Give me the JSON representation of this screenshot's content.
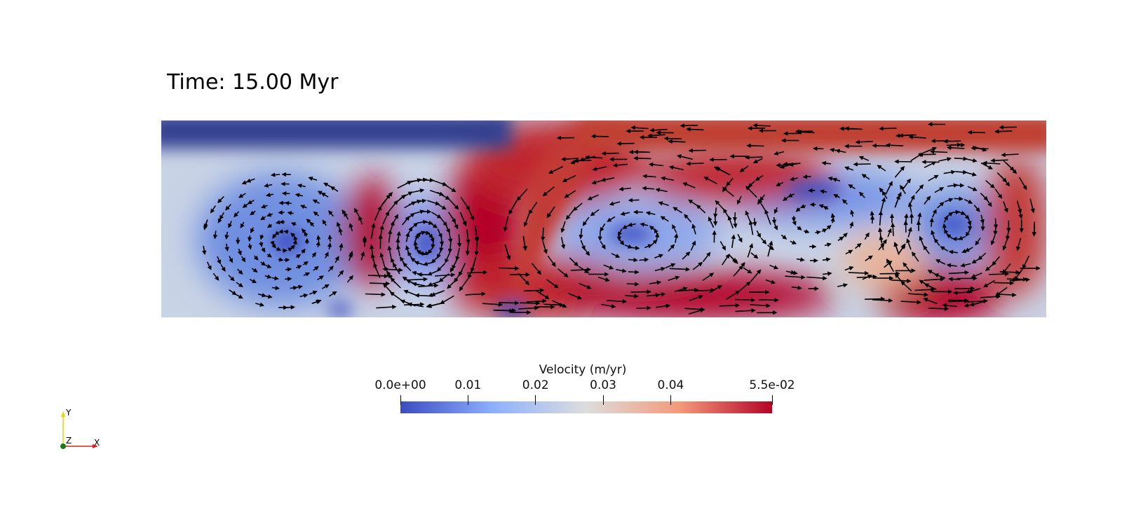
{
  "time_annotation": "Time: 15.00 Myr",
  "colorbar": {
    "title": "Velocity (m/yr)",
    "range": [
      0,
      0.055
    ],
    "colormap": [
      "#3b4cc0",
      "#8db0fe",
      "#dddddd",
      "#f49a7b",
      "#b40426"
    ],
    "ticks": [
      {
        "label": "0.0e+00",
        "value": 0
      },
      {
        "label": "0.01",
        "value": 0.01
      },
      {
        "label": "0.02",
        "value": 0.02
      },
      {
        "label": "0.03",
        "value": 0.03
      },
      {
        "label": "0.04",
        "value": 0.04
      },
      {
        "label": "5.5e-02",
        "value": 0.055
      }
    ]
  },
  "orientation_axes": {
    "x": "X",
    "y": "Y",
    "z": "Z"
  }
}
